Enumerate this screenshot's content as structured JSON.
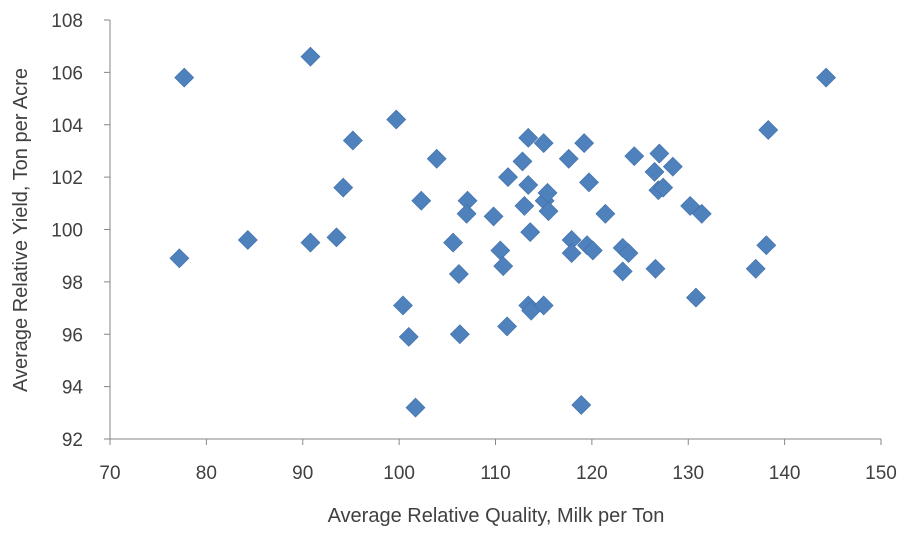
{
  "chart_data": {
    "type": "scatter",
    "title": "",
    "xlabel": "Average Relative Quality,  Milk per Ton",
    "ylabel": "Average Relative Yield, Ton per Acre",
    "xlim": [
      70,
      150
    ],
    "ylim": [
      92,
      108
    ],
    "xticks": [
      "70",
      "80",
      "90",
      "100",
      "110",
      "120",
      "130",
      "140",
      "150"
    ],
    "yticks": [
      "92",
      "94",
      "96",
      "98",
      "100",
      "102",
      "104",
      "106",
      "108"
    ],
    "grid": false,
    "legend": "none",
    "marker": "diamond",
    "marker_color": "#4f81bd",
    "series": [
      {
        "points": [
          [
            77.7,
            105.8
          ],
          [
            77.2,
            98.9
          ],
          [
            84.3,
            99.6
          ],
          [
            90.8,
            106.6
          ],
          [
            90.8,
            99.5
          ],
          [
            93.5,
            99.7
          ],
          [
            94.2,
            101.6
          ],
          [
            95.2,
            103.4
          ],
          [
            99.7,
            104.2
          ],
          [
            100.4,
            97.1
          ],
          [
            101.0,
            95.9
          ],
          [
            101.7,
            93.2
          ],
          [
            102.3,
            101.1
          ],
          [
            103.9,
            102.7
          ],
          [
            105.6,
            99.5
          ],
          [
            106.2,
            98.3
          ],
          [
            106.3,
            96.0
          ],
          [
            107.1,
            101.1
          ],
          [
            107.0,
            100.6
          ],
          [
            109.8,
            100.5
          ],
          [
            110.5,
            99.2
          ],
          [
            110.8,
            98.6
          ],
          [
            111.2,
            96.3
          ],
          [
            111.3,
            102.0
          ],
          [
            112.8,
            102.6
          ],
          [
            113.0,
            100.9
          ],
          [
            113.4,
            103.5
          ],
          [
            113.4,
            101.7
          ],
          [
            113.6,
            99.9
          ],
          [
            113.4,
            97.1
          ],
          [
            113.7,
            96.9
          ],
          [
            115.0,
            103.3
          ],
          [
            115.1,
            101.1
          ],
          [
            115.4,
            101.4
          ],
          [
            115.5,
            100.7
          ],
          [
            115.0,
            97.1
          ],
          [
            117.6,
            102.7
          ],
          [
            117.9,
            99.6
          ],
          [
            117.9,
            99.1
          ],
          [
            118.9,
            93.3
          ],
          [
            119.2,
            103.3
          ],
          [
            119.7,
            101.8
          ],
          [
            119.5,
            99.4
          ],
          [
            120.1,
            99.2
          ],
          [
            121.4,
            100.6
          ],
          [
            123.2,
            99.3
          ],
          [
            123.2,
            98.4
          ],
          [
            123.8,
            99.1
          ],
          [
            124.4,
            102.8
          ],
          [
            126.5,
            102.2
          ],
          [
            126.6,
            98.5
          ],
          [
            126.9,
            101.5
          ],
          [
            127.0,
            102.9
          ],
          [
            127.4,
            101.6
          ],
          [
            128.4,
            102.4
          ],
          [
            130.2,
            100.9
          ],
          [
            130.8,
            97.4
          ],
          [
            131.4,
            100.6
          ],
          [
            137.0,
            98.5
          ],
          [
            138.1,
            99.4
          ],
          [
            138.3,
            103.8
          ],
          [
            144.3,
            105.8
          ]
        ]
      }
    ]
  }
}
